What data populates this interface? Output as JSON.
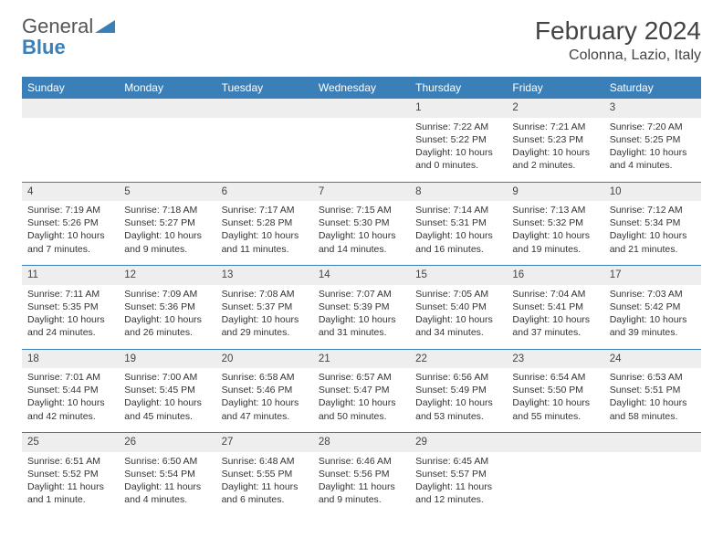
{
  "logo": {
    "text1": "General",
    "text2": "Blue"
  },
  "title": "February 2024",
  "location": "Colonna, Lazio, Italy",
  "colors": {
    "header_bg": "#3a7fb8",
    "header_text": "#ffffff",
    "daynum_bg": "#eeeeee",
    "border": "#3a7fb8",
    "text": "#333333"
  },
  "day_names": [
    "Sunday",
    "Monday",
    "Tuesday",
    "Wednesday",
    "Thursday",
    "Friday",
    "Saturday"
  ],
  "weeks": [
    [
      null,
      null,
      null,
      null,
      {
        "n": "1",
        "sr": "Sunrise: 7:22 AM",
        "ss": "Sunset: 5:22 PM",
        "dl": "Daylight: 10 hours and 0 minutes."
      },
      {
        "n": "2",
        "sr": "Sunrise: 7:21 AM",
        "ss": "Sunset: 5:23 PM",
        "dl": "Daylight: 10 hours and 2 minutes."
      },
      {
        "n": "3",
        "sr": "Sunrise: 7:20 AM",
        "ss": "Sunset: 5:25 PM",
        "dl": "Daylight: 10 hours and 4 minutes."
      }
    ],
    [
      {
        "n": "4",
        "sr": "Sunrise: 7:19 AM",
        "ss": "Sunset: 5:26 PM",
        "dl": "Daylight: 10 hours and 7 minutes."
      },
      {
        "n": "5",
        "sr": "Sunrise: 7:18 AM",
        "ss": "Sunset: 5:27 PM",
        "dl": "Daylight: 10 hours and 9 minutes."
      },
      {
        "n": "6",
        "sr": "Sunrise: 7:17 AM",
        "ss": "Sunset: 5:28 PM",
        "dl": "Daylight: 10 hours and 11 minutes."
      },
      {
        "n": "7",
        "sr": "Sunrise: 7:15 AM",
        "ss": "Sunset: 5:30 PM",
        "dl": "Daylight: 10 hours and 14 minutes."
      },
      {
        "n": "8",
        "sr": "Sunrise: 7:14 AM",
        "ss": "Sunset: 5:31 PM",
        "dl": "Daylight: 10 hours and 16 minutes."
      },
      {
        "n": "9",
        "sr": "Sunrise: 7:13 AM",
        "ss": "Sunset: 5:32 PM",
        "dl": "Daylight: 10 hours and 19 minutes."
      },
      {
        "n": "10",
        "sr": "Sunrise: 7:12 AM",
        "ss": "Sunset: 5:34 PM",
        "dl": "Daylight: 10 hours and 21 minutes."
      }
    ],
    [
      {
        "n": "11",
        "sr": "Sunrise: 7:11 AM",
        "ss": "Sunset: 5:35 PM",
        "dl": "Daylight: 10 hours and 24 minutes."
      },
      {
        "n": "12",
        "sr": "Sunrise: 7:09 AM",
        "ss": "Sunset: 5:36 PM",
        "dl": "Daylight: 10 hours and 26 minutes."
      },
      {
        "n": "13",
        "sr": "Sunrise: 7:08 AM",
        "ss": "Sunset: 5:37 PM",
        "dl": "Daylight: 10 hours and 29 minutes."
      },
      {
        "n": "14",
        "sr": "Sunrise: 7:07 AM",
        "ss": "Sunset: 5:39 PM",
        "dl": "Daylight: 10 hours and 31 minutes."
      },
      {
        "n": "15",
        "sr": "Sunrise: 7:05 AM",
        "ss": "Sunset: 5:40 PM",
        "dl": "Daylight: 10 hours and 34 minutes."
      },
      {
        "n": "16",
        "sr": "Sunrise: 7:04 AM",
        "ss": "Sunset: 5:41 PM",
        "dl": "Daylight: 10 hours and 37 minutes."
      },
      {
        "n": "17",
        "sr": "Sunrise: 7:03 AM",
        "ss": "Sunset: 5:42 PM",
        "dl": "Daylight: 10 hours and 39 minutes."
      }
    ],
    [
      {
        "n": "18",
        "sr": "Sunrise: 7:01 AM",
        "ss": "Sunset: 5:44 PM",
        "dl": "Daylight: 10 hours and 42 minutes."
      },
      {
        "n": "19",
        "sr": "Sunrise: 7:00 AM",
        "ss": "Sunset: 5:45 PM",
        "dl": "Daylight: 10 hours and 45 minutes."
      },
      {
        "n": "20",
        "sr": "Sunrise: 6:58 AM",
        "ss": "Sunset: 5:46 PM",
        "dl": "Daylight: 10 hours and 47 minutes."
      },
      {
        "n": "21",
        "sr": "Sunrise: 6:57 AM",
        "ss": "Sunset: 5:47 PM",
        "dl": "Daylight: 10 hours and 50 minutes."
      },
      {
        "n": "22",
        "sr": "Sunrise: 6:56 AM",
        "ss": "Sunset: 5:49 PM",
        "dl": "Daylight: 10 hours and 53 minutes."
      },
      {
        "n": "23",
        "sr": "Sunrise: 6:54 AM",
        "ss": "Sunset: 5:50 PM",
        "dl": "Daylight: 10 hours and 55 minutes."
      },
      {
        "n": "24",
        "sr": "Sunrise: 6:53 AM",
        "ss": "Sunset: 5:51 PM",
        "dl": "Daylight: 10 hours and 58 minutes."
      }
    ],
    [
      {
        "n": "25",
        "sr": "Sunrise: 6:51 AM",
        "ss": "Sunset: 5:52 PM",
        "dl": "Daylight: 11 hours and 1 minute."
      },
      {
        "n": "26",
        "sr": "Sunrise: 6:50 AM",
        "ss": "Sunset: 5:54 PM",
        "dl": "Daylight: 11 hours and 4 minutes."
      },
      {
        "n": "27",
        "sr": "Sunrise: 6:48 AM",
        "ss": "Sunset: 5:55 PM",
        "dl": "Daylight: 11 hours and 6 minutes."
      },
      {
        "n": "28",
        "sr": "Sunrise: 6:46 AM",
        "ss": "Sunset: 5:56 PM",
        "dl": "Daylight: 11 hours and 9 minutes."
      },
      {
        "n": "29",
        "sr": "Sunrise: 6:45 AM",
        "ss": "Sunset: 5:57 PM",
        "dl": "Daylight: 11 hours and 12 minutes."
      },
      null,
      null
    ]
  ]
}
